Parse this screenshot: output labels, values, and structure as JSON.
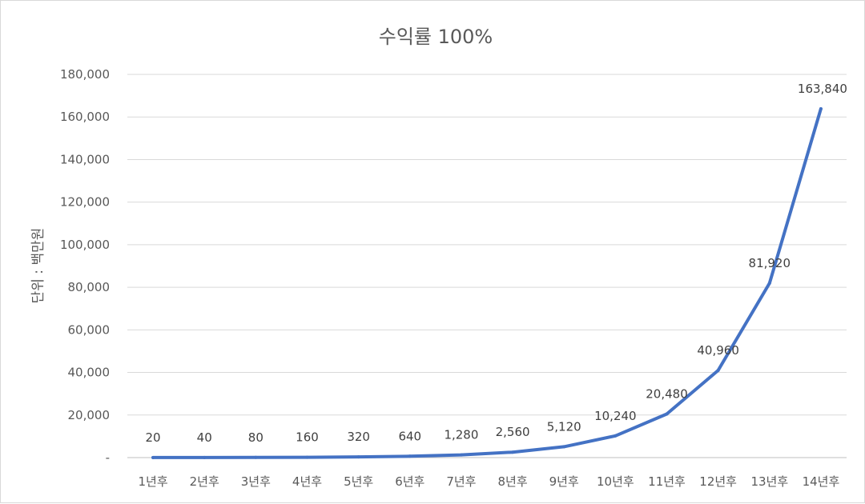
{
  "chart_data": {
    "type": "line",
    "title": "수익률 100%",
    "ylabel": "단위 : 백만원",
    "xlabel": "",
    "categories": [
      "1년후",
      "2년후",
      "3년후",
      "4년후",
      "5년후",
      "6년후",
      "7년후",
      "8년후",
      "9년후",
      "10년후",
      "11년후",
      "12년후",
      "13년후",
      "14년후"
    ],
    "series": [
      {
        "values": [
          20,
          40,
          80,
          160,
          320,
          640,
          1280,
          2560,
          5120,
          10240,
          20480,
          40960,
          81920,
          163840
        ],
        "labels": [
          "20",
          "40",
          "80",
          "160",
          "320",
          "640",
          "1,280",
          "2,560",
          "5,120",
          "10,240",
          "20,480",
          "40,960",
          "81,920",
          "163,840"
        ],
        "color": "#4472c4"
      }
    ],
    "ylim": [
      0,
      180000
    ],
    "yticks": [
      0,
      20000,
      40000,
      60000,
      80000,
      100000,
      120000,
      140000,
      160000,
      180000
    ],
    "ytick_labels": [
      "-",
      "20,000",
      "40,000",
      "60,000",
      "80,000",
      "100,000",
      "120,000",
      "140,000",
      "160,000",
      "180,000"
    ],
    "grid": true,
    "legend": "none"
  }
}
